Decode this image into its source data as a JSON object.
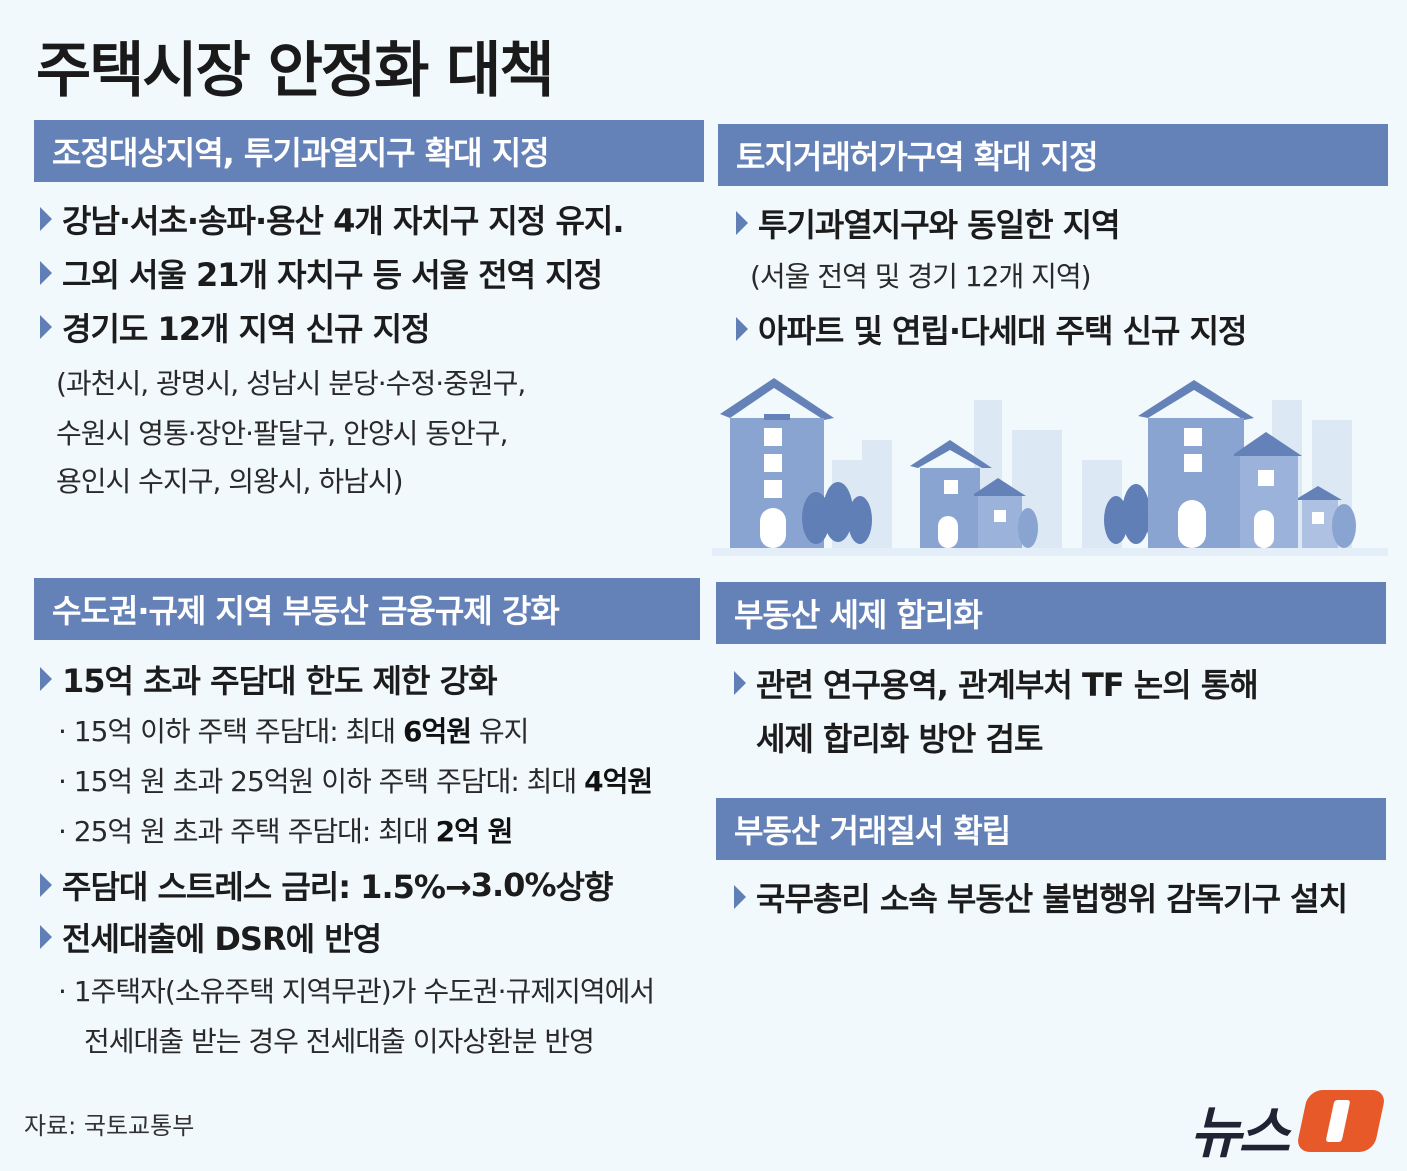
{
  "title": "주택시장 안정화 대책",
  "sections": {
    "s1": {
      "header": "조정대상지역, 투기과열지구 확대 지정",
      "bullets": [
        "강남·서초·송파·용산 4개 자치구 지정 유지.",
        "그외 서울 21개 자치구 등 서울 전역 지정",
        "경기도 12개 지역 신규 지정"
      ],
      "sub_lines": [
        "(과천시, 광명시, 성남시 분당·수정·중원구,",
        "수원시 영통·장안·팔달구, 안양시 동안구,",
        "용인시 수지구, 의왕시, 하남시)"
      ]
    },
    "s2": {
      "header": "토지거래허가구역 확대 지정",
      "bullet1": "투기과열지구와 동일한 지역",
      "sub": "(서울 전역 및 경기 12개 지역)",
      "bullet2": "아파트 및 연립·다세대 주택 신규 지정"
    },
    "s3": {
      "header": "수도권·규제 지역 부동산 금융규제 강화",
      "bullet1": "15억 초과 주담대 한도 제한 강화",
      "items": [
        {
          "pre": "· 15억 이하 주택 주담대: 최대 ",
          "bold": "6억원",
          "post": " 유지"
        },
        {
          "pre": "· 15억 원 초과 25억원 이하 주택 주담대: 최대 ",
          "bold": "4억원",
          "post": ""
        },
        {
          "pre": "· 25억 원 초과 주택 주담대: 최대 ",
          "bold": "2억 원",
          "post": ""
        }
      ],
      "bullet2_pre": "주담대 스트레스 금리: 1.5%→",
      "bullet2_bold": "3.0%",
      "bullet2_post": " 상향",
      "bullet3": "전세대출에 DSR에 반영",
      "note_line1": "· 1주택자(소유주택 지역무관)가 수도권·규제지역에서",
      "note_line2": "전세대출 받는 경우 전세대출 이자상환분 반영"
    },
    "s4": {
      "header": "부동산 세제 합리화",
      "bullet_line1": "관련 연구용역, 관계부처 TF 논의 통해",
      "bullet_line2": "세제 합리화 방안 검토"
    },
    "s5": {
      "header": "부동산 거래질서 확립",
      "bullet": "국무총리 소속 부동산 불법행위 감독기구 설치"
    }
  },
  "source": "자료: 국토교통부",
  "logo": {
    "text": "뉴스"
  },
  "colors": {
    "header_bg": "#6582b8",
    "background": "#f2f9fd",
    "bullet_marker": "#5f7fb6",
    "logo_accent": "#e8592a"
  },
  "illustration": "houses-illustration"
}
